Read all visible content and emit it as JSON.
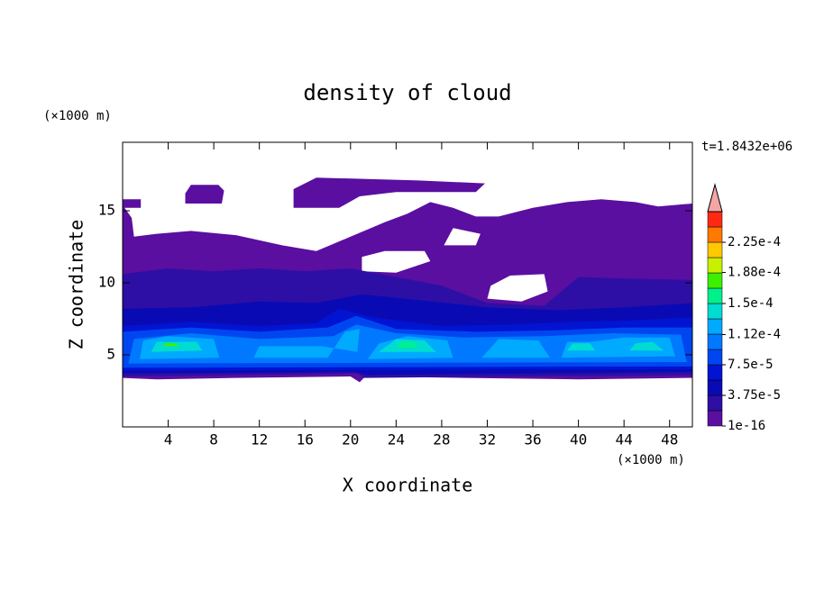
{
  "chart_data": {
    "type": "contour",
    "title": "density of cloud",
    "x_label": "X coordinate",
    "y_label": "Z coordinate",
    "x_unit": "(×1000 m)",
    "y_unit": "(×1000 m)",
    "time_label": "t=1.8432e+06",
    "xlim": [
      0,
      50
    ],
    "ylim": [
      0,
      19.75
    ],
    "xticks": [
      4,
      8,
      12,
      16,
      20,
      24,
      28,
      32,
      36,
      40,
      44,
      48
    ],
    "yticks": [
      5,
      10,
      15
    ],
    "levels": [
      1e-16,
      1.875e-05,
      3.75e-05,
      5.625e-05,
      7.5e-05,
      9.375e-05,
      0.000112,
      0.00013125,
      0.00015,
      0.00016875,
      0.000188,
      0.00020625,
      0.000225,
      0.00024375
    ],
    "colors": [
      "#5a0fa0",
      "#2d0fa5",
      "#0a0ab4",
      "#0014d2",
      "#0046f0",
      "#0078ff",
      "#00aaff",
      "#00dcd2",
      "#00f08c",
      "#3cf000",
      "#c8f000",
      "#ffc800",
      "#ff7800",
      "#ff2814"
    ],
    "extend_color": "#f4a6a6",
    "colorbar_ticks": [
      {
        "value": 1e-16,
        "label": "1e-16"
      },
      {
        "value": 3.75e-05,
        "label": "3.75e-5"
      },
      {
        "value": 7.5e-05,
        "label": "7.5e-5"
      },
      {
        "value": 0.000112,
        "label": "1.12e-4"
      },
      {
        "value": 0.00015,
        "label": "1.5e-4"
      },
      {
        "value": 0.000188,
        "label": "1.88e-4"
      },
      {
        "value": 0.000225,
        "label": "2.25e-4"
      }
    ]
  }
}
